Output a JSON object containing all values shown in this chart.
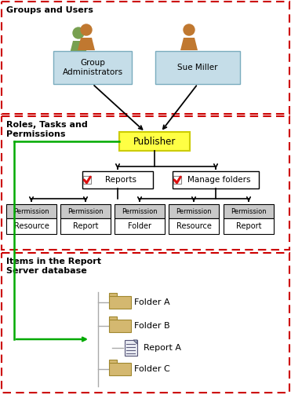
{
  "section1_label": "Groups and Users",
  "section2_label": "Roles, Tasks and\nPermissions",
  "section3_label": "Items in the Report\nServer database",
  "bg_color": "#ffffff",
  "dash_color": "#cc0000",
  "box_blue": "#c5dde8",
  "box_blue_border": "#7aacbe",
  "box_yellow": "#ffff44",
  "box_yellow_border": "#cccc00",
  "box_gray": "#c8c8c8",
  "box_white": "#ffffff",
  "arrow_color": "#000000",
  "green_color": "#00aa00",
  "folder_body": "#d4b870",
  "folder_border": "#a08830",
  "report_body": "#e8eaf0",
  "report_lines": "#666688",
  "tree_line": "#aaaaaa",
  "person_brown": "#c07830",
  "person_green": "#78a050",
  "perm_labels": [
    "Resource",
    "Report",
    "Folder",
    "Resource",
    "Report"
  ]
}
